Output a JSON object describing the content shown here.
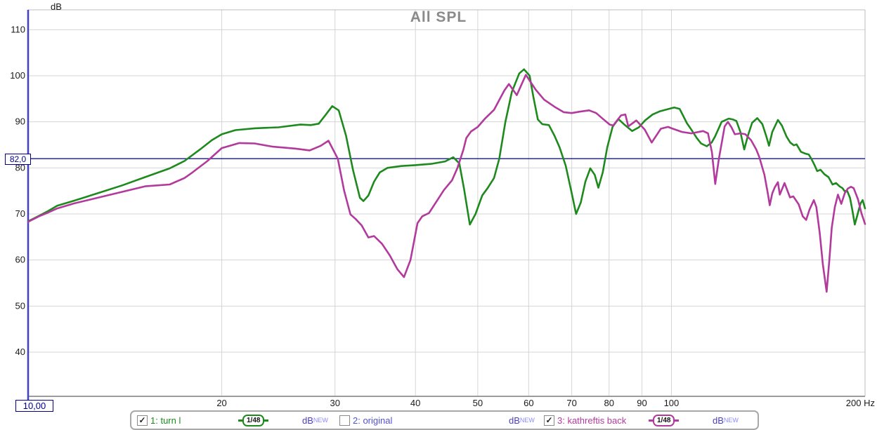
{
  "title": "All SPL",
  "axes": {
    "y_unit_label": "dB",
    "x_end_label": "200 Hz",
    "y_ticks": [
      110,
      100,
      90,
      80,
      70,
      60,
      50,
      40
    ],
    "x_ticks": [
      20,
      30,
      40,
      50,
      60,
      70,
      80,
      90,
      100
    ],
    "x_min": 10,
    "x_max": 200,
    "y_marker_label": "82,0",
    "x_marker_label": "10,00",
    "target_level_db": 82
  },
  "colors": {
    "grid": "#d4d4d4",
    "plot_border": "#bdbdbd",
    "bottom_axis": "#9b9b9b",
    "left_axis_blue": "#4040cc",
    "target_line": "#1515a3",
    "title": "#8a8a8a",
    "tick_text": "#1a1a1a",
    "trace1_green": "#1e8a1e",
    "trace2_blue": "#5151d0",
    "trace3_magenta": "#b23a9c",
    "db_unit_text": "#4d3fb5",
    "new_tag_text": "#8a8aff"
  },
  "legend": {
    "unit": "dB",
    "tag": "NEW",
    "items": [
      {
        "label": "1: turn l",
        "checked": true,
        "smoothing": "1/48",
        "color": "#1e8a1e"
      },
      {
        "label": "2: original",
        "checked": false,
        "smoothing": null,
        "color": "#5151d0"
      },
      {
        "label": "3: kathreftis back",
        "checked": true,
        "smoothing": "1/48",
        "color": "#b23a9c"
      }
    ]
  },
  "chart_data": {
    "type": "line",
    "x_scale": "log",
    "xlabel": "Hz",
    "ylabel": "dB",
    "xlim": [
      10,
      200
    ],
    "ylim_visible": [
      30,
      114
    ],
    "grid": true,
    "target_level_db": 82,
    "series": [
      {
        "name": "1: turn l",
        "color": "#1e8a1e",
        "points": [
          [
            10,
            68.4
          ],
          [
            10.4,
            69.6
          ],
          [
            10.7,
            70.5
          ],
          [
            11.1,
            71.8
          ],
          [
            11.8,
            72.9
          ],
          [
            12.9,
            74.6
          ],
          [
            14,
            76.2
          ],
          [
            15.2,
            78
          ],
          [
            16.6,
            79.9
          ],
          [
            17.5,
            81.5
          ],
          [
            18.5,
            84
          ],
          [
            19.3,
            86
          ],
          [
            20,
            87.3
          ],
          [
            21,
            88.2
          ],
          [
            22.5,
            88.6
          ],
          [
            24.5,
            88.8
          ],
          [
            26.5,
            89.4
          ],
          [
            27.5,
            89.3
          ],
          [
            28.3,
            89.6
          ],
          [
            29,
            91.5
          ],
          [
            29.7,
            93.4
          ],
          [
            30.4,
            92.5
          ],
          [
            31.2,
            87
          ],
          [
            32,
            79.5
          ],
          [
            32.8,
            73.5
          ],
          [
            33.2,
            72.8
          ],
          [
            33.8,
            74
          ],
          [
            34.5,
            77
          ],
          [
            35.2,
            79
          ],
          [
            36.2,
            80
          ],
          [
            38,
            80.4
          ],
          [
            40,
            80.6
          ],
          [
            42.5,
            80.9
          ],
          [
            44.5,
            81.4
          ],
          [
            45.8,
            82.3
          ],
          [
            46.8,
            81
          ],
          [
            47.6,
            75.5
          ],
          [
            48.6,
            67.7
          ],
          [
            49.6,
            70
          ],
          [
            50.8,
            74
          ],
          [
            51.8,
            75.6
          ],
          [
            53,
            77.8
          ],
          [
            54,
            82
          ],
          [
            55.2,
            90
          ],
          [
            56.5,
            96.5
          ],
          [
            58,
            100.5
          ],
          [
            59,
            101.4
          ],
          [
            60.2,
            100
          ],
          [
            61,
            95.5
          ],
          [
            62,
            90.5
          ],
          [
            63,
            89.5
          ],
          [
            64.5,
            89.3
          ],
          [
            65.8,
            87
          ],
          [
            67,
            84.5
          ],
          [
            68.5,
            80.5
          ],
          [
            70,
            74.5
          ],
          [
            71.1,
            70
          ],
          [
            72.3,
            72.5
          ],
          [
            73.5,
            77
          ],
          [
            74.8,
            79.9
          ],
          [
            76,
            78.5
          ],
          [
            77,
            75.7
          ],
          [
            78.2,
            79
          ],
          [
            79.5,
            84.5
          ],
          [
            81,
            88.9
          ],
          [
            82.7,
            90.6
          ],
          [
            84.5,
            89.4
          ],
          [
            86.9,
            88
          ],
          [
            89,
            88.8
          ],
          [
            91,
            90.3
          ],
          [
            93.5,
            91.6
          ],
          [
            96,
            92.3
          ],
          [
            98.5,
            92.7
          ],
          [
            101,
            93.1
          ],
          [
            103,
            92.8
          ],
          [
            105.7,
            89.7
          ],
          [
            107.4,
            88.3
          ],
          [
            109.5,
            86.5
          ],
          [
            111.2,
            85.3
          ],
          [
            113.5,
            84.7
          ],
          [
            115.5,
            85.5
          ],
          [
            116.9,
            86.8
          ],
          [
            119.7,
            90
          ],
          [
            122.8,
            90.7
          ],
          [
            124.7,
            90.5
          ],
          [
            126.2,
            90.2
          ],
          [
            128,
            87.8
          ],
          [
            129.8,
            84
          ],
          [
            131.5,
            87
          ],
          [
            133.5,
            89.8
          ],
          [
            136,
            90.8
          ],
          [
            138.5,
            89.5
          ],
          [
            140.5,
            86.8
          ],
          [
            141.8,
            84.8
          ],
          [
            143.5,
            87.8
          ],
          [
            146.4,
            90.4
          ],
          [
            148.5,
            89.2
          ],
          [
            151,
            86.8
          ],
          [
            153,
            85.5
          ],
          [
            155,
            84.9
          ],
          [
            156.5,
            85.1
          ],
          [
            159,
            83.5
          ],
          [
            161.5,
            83.1
          ],
          [
            163.5,
            82.9
          ],
          [
            165,
            82
          ],
          [
            166.8,
            80.7
          ],
          [
            168.5,
            79.3
          ],
          [
            170.5,
            79.6
          ],
          [
            173,
            78.6
          ],
          [
            175.5,
            78
          ],
          [
            178,
            76.4
          ],
          [
            180.3,
            76.7
          ],
          [
            182.5,
            76
          ],
          [
            184.5,
            75.6
          ],
          [
            186,
            74.9
          ],
          [
            187.5,
            75.1
          ],
          [
            189.5,
            73.5
          ],
          [
            191,
            71
          ],
          [
            192.8,
            67.7
          ],
          [
            194.8,
            70
          ],
          [
            196.8,
            72.3
          ],
          [
            198.3,
            73
          ],
          [
            200,
            71.2
          ]
        ]
      },
      {
        "name": "3: kathreftis back",
        "color": "#b23a9c",
        "points": [
          [
            10,
            68.3
          ],
          [
            10.4,
            69.5
          ],
          [
            10.7,
            70.2
          ],
          [
            11.1,
            71.2
          ],
          [
            11.8,
            72.3
          ],
          [
            12.9,
            73.6
          ],
          [
            14,
            74.8
          ],
          [
            15.2,
            76
          ],
          [
            16.6,
            76.4
          ],
          [
            17.5,
            77.8
          ],
          [
            18,
            79
          ],
          [
            19,
            81.5
          ],
          [
            20,
            84.3
          ],
          [
            21.3,
            85.4
          ],
          [
            22.5,
            85.3
          ],
          [
            24,
            84.6
          ],
          [
            26,
            84.2
          ],
          [
            27.4,
            83.8
          ],
          [
            28.5,
            84.8
          ],
          [
            29.3,
            85.9
          ],
          [
            30.3,
            82
          ],
          [
            31,
            75
          ],
          [
            31.7,
            69.9
          ],
          [
            32.3,
            68.9
          ],
          [
            33,
            67.5
          ],
          [
            33.8,
            64.9
          ],
          [
            34.5,
            65.2
          ],
          [
            35.5,
            63.5
          ],
          [
            36.5,
            61
          ],
          [
            37.5,
            58
          ],
          [
            38.4,
            56.3
          ],
          [
            39.3,
            60
          ],
          [
            40.3,
            68
          ],
          [
            41,
            69.5
          ],
          [
            42,
            70.2
          ],
          [
            44.3,
            75.2
          ],
          [
            45.6,
            77.3
          ],
          [
            46.5,
            80
          ],
          [
            47.5,
            84
          ],
          [
            48,
            86.5
          ],
          [
            48.8,
            87.9
          ],
          [
            50,
            88.9
          ],
          [
            51.4,
            90.8
          ],
          [
            53,
            92.6
          ],
          [
            55,
            96.8
          ],
          [
            55.9,
            98.2
          ],
          [
            57.5,
            95.8
          ],
          [
            59.4,
            100.2
          ],
          [
            61.5,
            97
          ],
          [
            63.4,
            94.8
          ],
          [
            66.1,
            93.1
          ],
          [
            68,
            92.1
          ],
          [
            70,
            91.9
          ],
          [
            72,
            92.2
          ],
          [
            74.5,
            92.5
          ],
          [
            76.4,
            91.9
          ],
          [
            78.3,
            90.6
          ],
          [
            80.2,
            89.4
          ],
          [
            81.2,
            89.2
          ],
          [
            83.5,
            91.4
          ],
          [
            84.8,
            91.6
          ],
          [
            85.7,
            89
          ],
          [
            88.2,
            90.3
          ],
          [
            90.9,
            88.3
          ],
          [
            93.2,
            85.5
          ],
          [
            96.3,
            88.5
          ],
          [
            98.8,
            88.9
          ],
          [
            100.5,
            88.5
          ],
          [
            103.9,
            87.8
          ],
          [
            107.4,
            87.5
          ],
          [
            112,
            88
          ],
          [
            114,
            87.5
          ],
          [
            115.6,
            83.4
          ],
          [
            117,
            76.5
          ],
          [
            118.5,
            81.9
          ],
          [
            121,
            89
          ],
          [
            122.4,
            90
          ],
          [
            124,
            88.8
          ],
          [
            125.5,
            87.3
          ],
          [
            128.1,
            87.5
          ],
          [
            130.3,
            87.3
          ],
          [
            133,
            86
          ],
          [
            135.5,
            84
          ],
          [
            137,
            82.3
          ],
          [
            139.5,
            78.5
          ],
          [
            141.2,
            74.5
          ],
          [
            142.2,
            71.9
          ],
          [
            143.5,
            74.5
          ],
          [
            144.8,
            75.8
          ],
          [
            146.4,
            76.9
          ],
          [
            147.4,
            74.2
          ],
          [
            149.9,
            76.7
          ],
          [
            152.9,
            73.6
          ],
          [
            154.7,
            73.8
          ],
          [
            157.7,
            72.1
          ],
          [
            160,
            69.5
          ],
          [
            162,
            68.7
          ],
          [
            164,
            71
          ],
          [
            166.5,
            73
          ],
          [
            168,
            71.5
          ],
          [
            170,
            66
          ],
          [
            172,
            59
          ],
          [
            174.3,
            53.1
          ],
          [
            176,
            60
          ],
          [
            177.5,
            67
          ],
          [
            179.5,
            71.5
          ],
          [
            181.5,
            74.2
          ],
          [
            183.7,
            72.2
          ],
          [
            186,
            74.5
          ],
          [
            188,
            75.5
          ],
          [
            190.2,
            75.9
          ],
          [
            192,
            75.6
          ],
          [
            195,
            73.2
          ],
          [
            197.4,
            70.2
          ],
          [
            200,
            67.8
          ]
        ]
      }
    ]
  }
}
